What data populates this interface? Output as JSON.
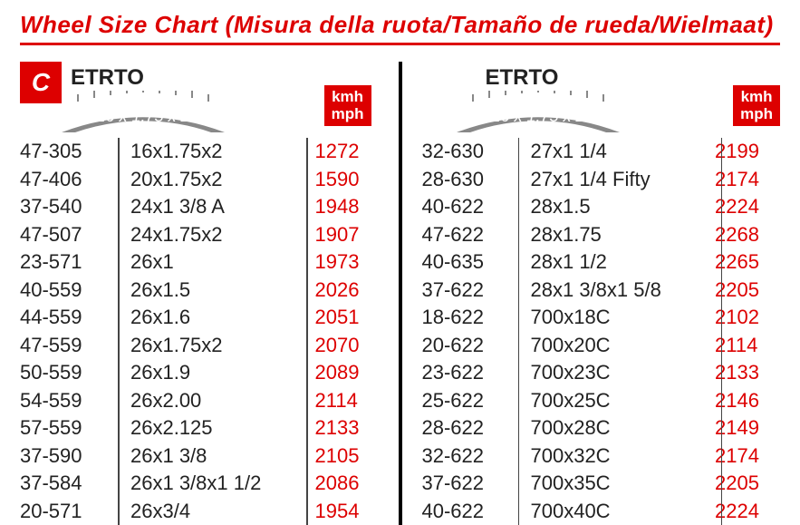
{
  "title": "Wheel Size Chart (Misura della ruota/Tamaño de rueda/Wielmaat)",
  "badge": "C",
  "etrto_label": "ETRTO",
  "tire_label": "16 x 1.75 x 2",
  "kmh_label_top": "kmh",
  "kmh_label_bot": "mph",
  "colors": {
    "brand": "#d00",
    "text": "#222",
    "divider": "#000"
  },
  "left": [
    {
      "etrto": "47-305",
      "size": "16x1.75x2",
      "mm": "1272"
    },
    {
      "etrto": "47-406",
      "size": "20x1.75x2",
      "mm": "1590"
    },
    {
      "etrto": "37-540",
      "size": "24x1 3/8 A",
      "mm": "1948"
    },
    {
      "etrto": "47-507",
      "size": "24x1.75x2",
      "mm": "1907"
    },
    {
      "etrto": "23-571",
      "size": "26x1",
      "mm": "1973"
    },
    {
      "etrto": "40-559",
      "size": "26x1.5",
      "mm": "2026"
    },
    {
      "etrto": "44-559",
      "size": "26x1.6",
      "mm": "2051"
    },
    {
      "etrto": "47-559",
      "size": "26x1.75x2",
      "mm": "2070"
    },
    {
      "etrto": "50-559",
      "size": "26x1.9",
      "mm": "2089"
    },
    {
      "etrto": "54-559",
      "size": "26x2.00",
      "mm": "2114"
    },
    {
      "etrto": "57-559",
      "size": "26x2.125",
      "mm": "2133"
    },
    {
      "etrto": "37-590",
      "size": "26x1 3/8",
      "mm": "2105"
    },
    {
      "etrto": "37-584",
      "size": "26x1 3/8x1 1/2",
      "mm": "2086"
    },
    {
      "etrto": "20-571",
      "size": "26x3/4",
      "mm": "1954"
    }
  ],
  "right": [
    {
      "etrto": "32-630",
      "size": "27x1 1/4",
      "mm": "2199"
    },
    {
      "etrto": "28-630",
      "size": "27x1 1/4 Fifty",
      "mm": "2174"
    },
    {
      "etrto": "40-622",
      "size": "28x1.5",
      "mm": "2224"
    },
    {
      "etrto": "47-622",
      "size": "28x1.75",
      "mm": "2268"
    },
    {
      "etrto": "40-635",
      "size": "28x1 1/2",
      "mm": "2265"
    },
    {
      "etrto": "37-622",
      "size": "28x1 3/8x1 5/8",
      "mm": "2205"
    },
    {
      "etrto": "18-622",
      "size": "700x18C",
      "mm": "2102"
    },
    {
      "etrto": "20-622",
      "size": "700x20C",
      "mm": "2114"
    },
    {
      "etrto": "23-622",
      "size": "700x23C",
      "mm": "2133"
    },
    {
      "etrto": "25-622",
      "size": "700x25C",
      "mm": "2146"
    },
    {
      "etrto": "28-622",
      "size": "700x28C",
      "mm": "2149"
    },
    {
      "etrto": "32-622",
      "size": "700x32C",
      "mm": "2174"
    },
    {
      "etrto": "37-622",
      "size": "700x35C",
      "mm": "2205"
    },
    {
      "etrto": "40-622",
      "size": "700x40C",
      "mm": "2224"
    }
  ]
}
